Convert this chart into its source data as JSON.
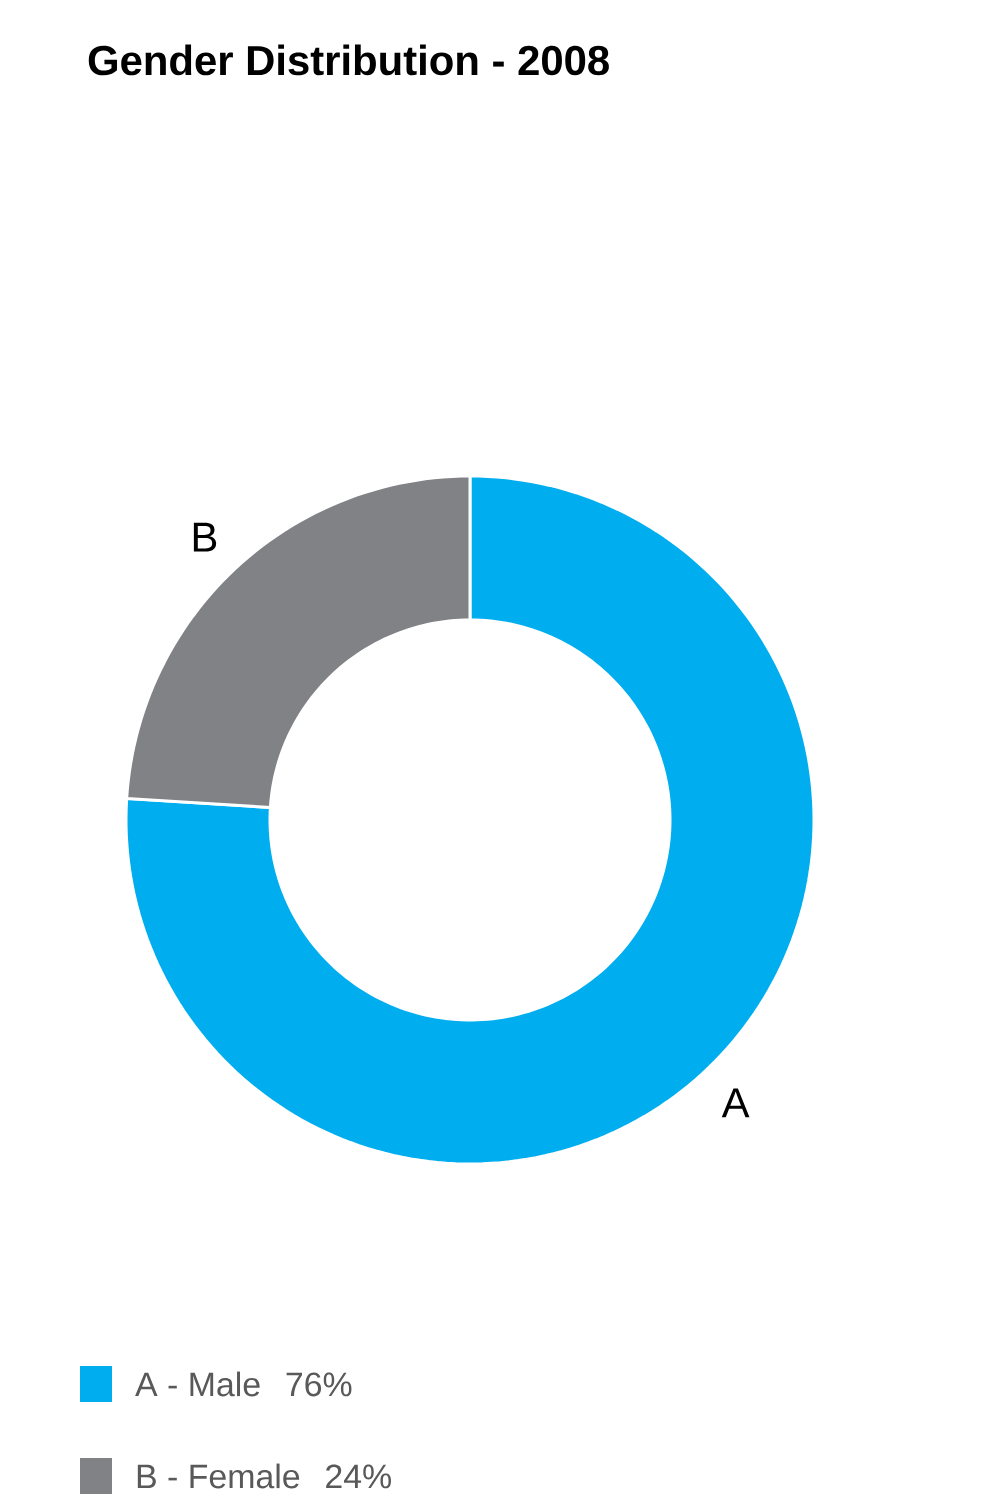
{
  "chart_data": {
    "type": "donut",
    "title": "Gender Distribution - 2008",
    "categories": [
      "A - Male",
      "B - Female"
    ],
    "values": [
      76,
      24
    ],
    "value_labels": [
      "76%",
      "24%"
    ],
    "colors": [
      "#00aeef",
      "#808285"
    ],
    "annotations": [
      "A",
      "B"
    ],
    "legend": "bottom"
  }
}
